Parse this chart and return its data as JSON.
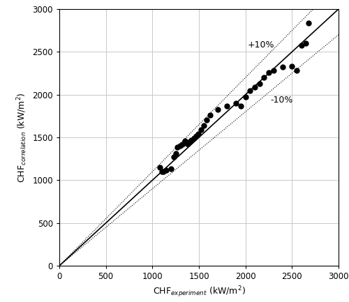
{
  "xlabel": "CHF$_{experiment}$ (kW/m$^2$)",
  "ylabel": "CHF$_{correlation}$ (kW/m$^2$)",
  "xlim": [
    0,
    3000
  ],
  "ylim": [
    0,
    3000
  ],
  "xticks": [
    0,
    500,
    1000,
    1500,
    2000,
    2500,
    3000
  ],
  "yticks": [
    0,
    500,
    1000,
    1500,
    2000,
    2500,
    3000
  ],
  "scatter_x": [
    1080,
    1100,
    1120,
    1150,
    1200,
    1230,
    1250,
    1270,
    1300,
    1320,
    1350,
    1370,
    1380,
    1400,
    1420,
    1450,
    1470,
    1490,
    1520,
    1550,
    1580,
    1620,
    1700,
    1800,
    1900,
    1950,
    2000,
    2050,
    2100,
    2150,
    2200,
    2250,
    2300,
    2400,
    2500,
    2550,
    2600,
    2650,
    2680
  ],
  "scatter_y": [
    1150,
    1100,
    1100,
    1120,
    1130,
    1270,
    1310,
    1390,
    1400,
    1420,
    1460,
    1430,
    1430,
    1450,
    1470,
    1490,
    1520,
    1540,
    1590,
    1640,
    1700,
    1760,
    1830,
    1870,
    1900,
    1870,
    1970,
    2050,
    2090,
    2130,
    2200,
    2260,
    2280,
    2320,
    2330,
    2280,
    2580,
    2600,
    2840
  ],
  "line_color": "#000000",
  "dot_color": "#000000",
  "plus10_label": "+10%",
  "minus10_label": "-10%",
  "background_color": "#ffffff",
  "grid_color": "#c8c8c8",
  "marker_size": 6,
  "plus10_x": 2020,
  "plus10_y": 2530,
  "minus10_x": 2270,
  "minus10_y": 1990
}
